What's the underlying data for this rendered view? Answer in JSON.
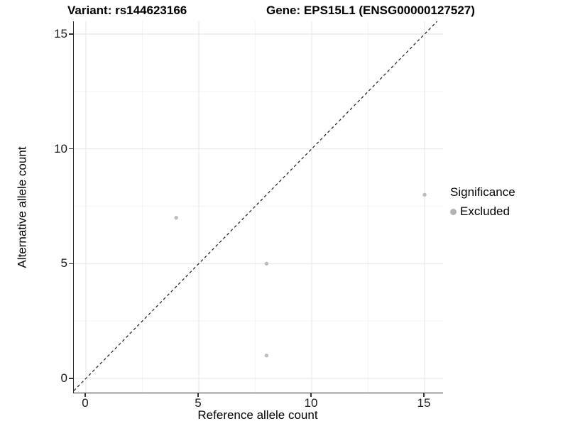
{
  "chart_data": {
    "type": "scatter",
    "title_left": "Variant: rs144623166",
    "title_right": "Gene: EPS15L1 (ENSG00000127527)",
    "xlabel": "Reference allele count",
    "ylabel": "Alternative allele count",
    "series": [
      {
        "name": "Excluded",
        "color": "#bdbdbd",
        "points": [
          {
            "x": 4,
            "y": 7
          },
          {
            "x": 8,
            "y": 5
          },
          {
            "x": 8,
            "y": 1
          },
          {
            "x": 15,
            "y": 8
          }
        ]
      }
    ],
    "x_ticks": [
      0,
      5,
      10,
      15
    ],
    "y_ticks": [
      0,
      5,
      10,
      15
    ],
    "x_minor_ticks": [
      2.5,
      7.5,
      12.5
    ],
    "y_minor_ticks": [
      2.5,
      7.5,
      12.5
    ],
    "xlim": [
      -0.53,
      15.82
    ],
    "ylim": [
      -0.62,
      15.56
    ],
    "reference_line": {
      "kind": "identity",
      "equation": "y = x",
      "style": "dashed",
      "color": "#1a1a1a"
    },
    "grid": "major and minor gridlines, light gray on white",
    "legend_position": "right"
  },
  "legend": {
    "title": "Significance",
    "items": [
      {
        "label": "Excluded",
        "color": "#b3b3b3"
      }
    ]
  },
  "colors": {
    "background": "#ffffff",
    "grid_major": "#e8e8e8",
    "grid_minor": "#f4f4f4",
    "axis_line": "#2b2b2b",
    "point": "#bdbdbd",
    "reference_line": "#1a1a1a"
  }
}
